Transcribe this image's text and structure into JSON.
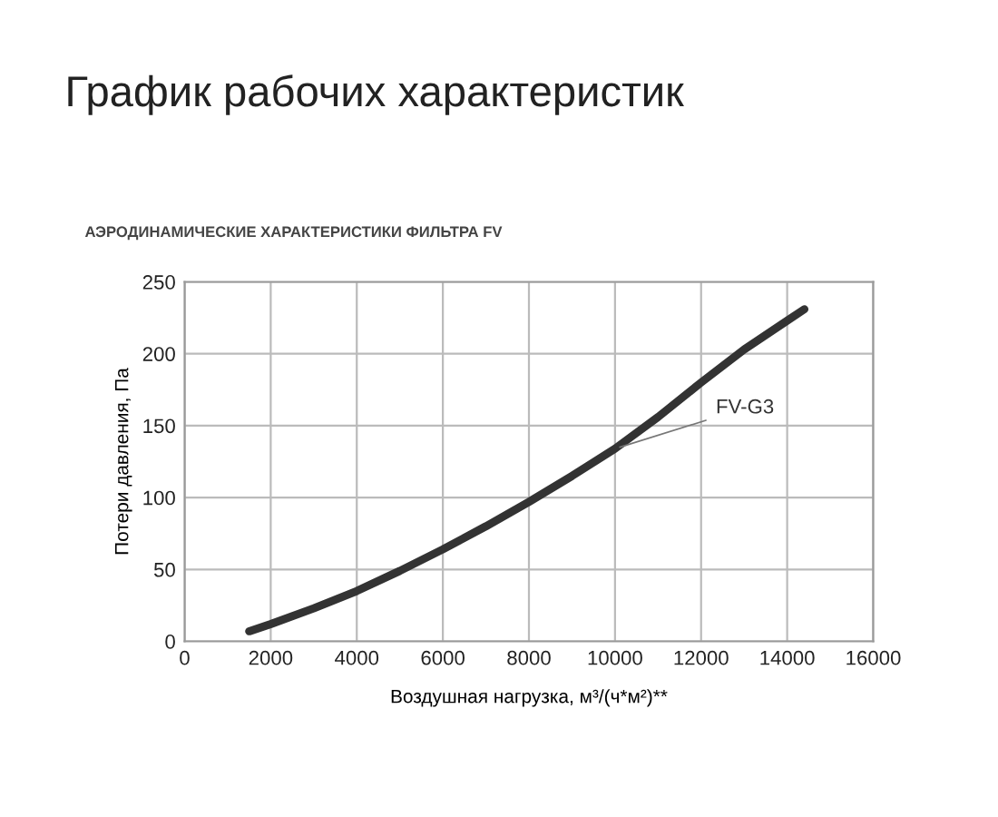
{
  "chart_data": {
    "type": "line",
    "title": "График рабочих характеристик",
    "subtitle": "АЭРОДИНАМИЧЕСКИЕ ХАРАКТЕРИСТИКИ ФИЛЬТРА FV",
    "xlabel": "Воздушная нагрузка, м³/(ч*м²)**",
    "ylabel": "Потери давления, Па",
    "series": [
      {
        "name": "FV-G3",
        "color": "#333333",
        "x": [
          1500,
          2000,
          3000,
          4000,
          5000,
          6000,
          7000,
          8000,
          9000,
          10000,
          11000,
          12000,
          13000,
          14000,
          14400
        ],
        "values": [
          7,
          12,
          23,
          35,
          49,
          64,
          80,
          97,
          115,
          134,
          156,
          180,
          203,
          223,
          231
        ]
      }
    ],
    "xlim": [
      0,
      16000
    ],
    "xticks": [
      0,
      2000,
      4000,
      6000,
      8000,
      10000,
      12000,
      14000,
      16000
    ],
    "ylim": [
      0,
      250
    ],
    "yticks": [
      0,
      50,
      100,
      150,
      200,
      250
    ],
    "grid": true,
    "legend": false,
    "marker": "none",
    "line_style": "solid"
  }
}
